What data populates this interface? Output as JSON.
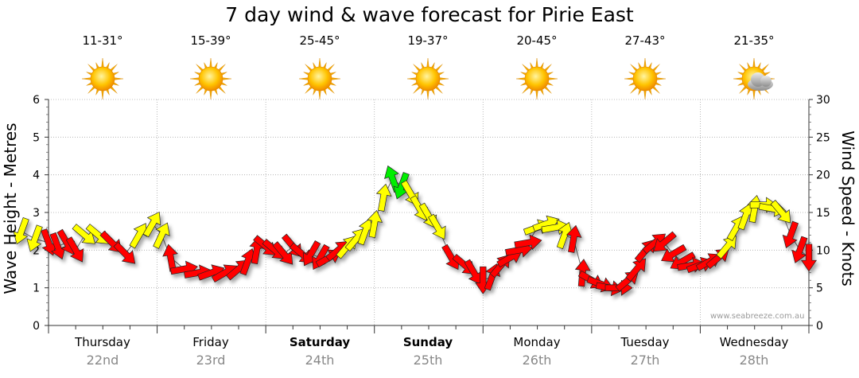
{
  "title": "7 day wind & wave forecast for Pirie East",
  "watermark": "www.seabreeze.com.au",
  "days": [
    {
      "name": "Thursday",
      "date": "22nd",
      "temp": "11-31°",
      "icon": "sun-icon",
      "bold": false
    },
    {
      "name": "Friday",
      "date": "23rd",
      "temp": "15-39°",
      "icon": "sun-icon",
      "bold": false
    },
    {
      "name": "Saturday",
      "date": "24th",
      "temp": "25-45°",
      "icon": "sun-icon",
      "bold": true
    },
    {
      "name": "Sunday",
      "date": "25th",
      "temp": "19-37°",
      "icon": "sun-icon",
      "bold": true
    },
    {
      "name": "Monday",
      "date": "26th",
      "temp": "20-45°",
      "icon": "sun-icon",
      "bold": false
    },
    {
      "name": "Tuesday",
      "date": "27th",
      "temp": "27-43°",
      "icon": "sun-icon",
      "bold": false
    },
    {
      "name": "Wednesday",
      "date": "28th",
      "temp": "21-35°",
      "icon": "sun-cloud-icon",
      "bold": false
    }
  ],
  "colors": {
    "strong": "#ff0000",
    "moderate": "#ffff00",
    "light": "#00ee00",
    "outline": "#222222",
    "grid": "#aaaaaa"
  },
  "chart_data": {
    "type": "line",
    "title": "7 day wind & wave forecast for Pirie East",
    "ylabel_left": "Wave Height - Metres",
    "ylabel_right": "Wind Speed - Knots",
    "ylim_left": [
      0,
      6
    ],
    "ylim_right": [
      0,
      30
    ],
    "yticks_left": [
      "0",
      "1",
      "2",
      "3",
      "4",
      "5",
      "6"
    ],
    "yticks_right": [
      "0",
      "5",
      "10",
      "15",
      "20",
      "25",
      "30"
    ],
    "x_unit": "hours from Thursday 00:00",
    "xlim": [
      -8,
      168
    ],
    "grid": true,
    "series": [
      {
        "kind": "wind_arrows",
        "units": "knots / degrees (arrow heading direction)",
        "points": [
          {
            "x": -6,
            "wave": 2.5,
            "dir": 200,
            "c": "y"
          },
          {
            "x": -3,
            "wave": 2.3,
            "dir": 200,
            "c": "y"
          },
          {
            "x": 0,
            "wave": 2.2,
            "dir": 160,
            "c": "r"
          },
          {
            "x": 2,
            "wave": 2.1,
            "dir": 160,
            "c": "r"
          },
          {
            "x": 4,
            "wave": 2.2,
            "dir": 150,
            "c": "r"
          },
          {
            "x": 6,
            "wave": 2.0,
            "dir": 150,
            "c": "r"
          },
          {
            "x": 8,
            "wave": 2.4,
            "dir": 130,
            "c": "y"
          },
          {
            "x": 11,
            "wave": 2.4,
            "dir": 130,
            "c": "y"
          },
          {
            "x": 14,
            "wave": 2.2,
            "dir": 135,
            "c": "r"
          },
          {
            "x": 17,
            "wave": 1.9,
            "dir": 135,
            "c": "r"
          },
          {
            "x": 20,
            "wave": 2.4,
            "dir": 30,
            "c": "y"
          },
          {
            "x": 23,
            "wave": 2.7,
            "dir": 30,
            "c": "y"
          },
          {
            "x": 25,
            "wave": 2.4,
            "dir": 25,
            "c": "y"
          },
          {
            "x": 27,
            "wave": 1.8,
            "dir": 350,
            "c": "r"
          },
          {
            "x": 30,
            "wave": 1.5,
            "dir": 80,
            "c": "r"
          },
          {
            "x": 33,
            "wave": 1.4,
            "dir": 80,
            "c": "r"
          },
          {
            "x": 36,
            "wave": 1.4,
            "dir": 70,
            "c": "r"
          },
          {
            "x": 39,
            "wave": 1.4,
            "dir": 60,
            "c": "r"
          },
          {
            "x": 42,
            "wave": 1.5,
            "dir": 50,
            "c": "r"
          },
          {
            "x": 44,
            "wave": 1.7,
            "dir": 20,
            "c": "r"
          },
          {
            "x": 46,
            "wave": 2.0,
            "dir": 10,
            "c": "r"
          },
          {
            "x": 48,
            "wave": 2.1,
            "dir": 130,
            "c": "r"
          },
          {
            "x": 50,
            "wave": 2.0,
            "dir": 130,
            "c": "r"
          },
          {
            "x": 52,
            "wave": 1.9,
            "dir": 140,
            "c": "r"
          },
          {
            "x": 54,
            "wave": 2.1,
            "dir": 140,
            "c": "r"
          },
          {
            "x": 56,
            "wave": 1.9,
            "dir": 130,
            "c": "r"
          },
          {
            "x": 58,
            "wave": 1.9,
            "dir": 210,
            "c": "r"
          },
          {
            "x": 60,
            "wave": 1.8,
            "dir": 210,
            "c": "r"
          },
          {
            "x": 62,
            "wave": 1.8,
            "dir": 60,
            "c": "r"
          },
          {
            "x": 64,
            "wave": 2.0,
            "dir": 50,
            "c": "r"
          },
          {
            "x": 66,
            "wave": 2.1,
            "dir": 40,
            "c": "y"
          },
          {
            "x": 68,
            "wave": 2.3,
            "dir": 40,
            "c": "y"
          },
          {
            "x": 70,
            "wave": 2.5,
            "dir": 20,
            "c": "y"
          },
          {
            "x": 72,
            "wave": 2.7,
            "dir": 10,
            "c": "y"
          },
          {
            "x": 74,
            "wave": 3.4,
            "dir": 10,
            "c": "y"
          },
          {
            "x": 76,
            "wave": 3.9,
            "dir": 340,
            "c": "g"
          },
          {
            "x": 78,
            "wave": 3.7,
            "dir": 200,
            "c": "g"
          },
          {
            "x": 80,
            "wave": 3.5,
            "dir": 150,
            "c": "y"
          },
          {
            "x": 82,
            "wave": 3.1,
            "dir": 150,
            "c": "y"
          },
          {
            "x": 84,
            "wave": 2.9,
            "dir": 150,
            "c": "y"
          },
          {
            "x": 86,
            "wave": 2.6,
            "dir": 150,
            "c": "y"
          },
          {
            "x": 89,
            "wave": 1.8,
            "dir": 150,
            "c": "r"
          },
          {
            "x": 92,
            "wave": 1.6,
            "dir": 130,
            "c": "r"
          },
          {
            "x": 94,
            "wave": 1.4,
            "dir": 150,
            "c": "r"
          },
          {
            "x": 96,
            "wave": 1.2,
            "dir": 180,
            "c": "r"
          },
          {
            "x": 98,
            "wave": 1.3,
            "dir": 20,
            "c": "r"
          },
          {
            "x": 100,
            "wave": 1.6,
            "dir": 40,
            "c": "r"
          },
          {
            "x": 102,
            "wave": 1.8,
            "dir": 60,
            "c": "r"
          },
          {
            "x": 104,
            "wave": 2.0,
            "dir": 80,
            "c": "r"
          },
          {
            "x": 106,
            "wave": 2.2,
            "dir": 80,
            "c": "r"
          },
          {
            "x": 108,
            "wave": 2.6,
            "dir": 70,
            "c": "y"
          },
          {
            "x": 110,
            "wave": 2.7,
            "dir": 70,
            "c": "y"
          },
          {
            "x": 112,
            "wave": 2.6,
            "dir": 80,
            "c": "y"
          },
          {
            "x": 114,
            "wave": 2.4,
            "dir": 20,
            "c": "y"
          },
          {
            "x": 116,
            "wave": 2.3,
            "dir": 10,
            "c": "r"
          },
          {
            "x": 118,
            "wave": 1.4,
            "dir": 5,
            "c": "r"
          },
          {
            "x": 120,
            "wave": 1.2,
            "dir": 120,
            "c": "r"
          },
          {
            "x": 122,
            "wave": 1.1,
            "dir": 110,
            "c": "r"
          },
          {
            "x": 124,
            "wave": 1.0,
            "dir": 100,
            "c": "r"
          },
          {
            "x": 126,
            "wave": 1.0,
            "dir": 90,
            "c": "r"
          },
          {
            "x": 128,
            "wave": 1.2,
            "dir": 50,
            "c": "r"
          },
          {
            "x": 130,
            "wave": 1.5,
            "dir": 40,
            "c": "r"
          },
          {
            "x": 132,
            "wave": 2.0,
            "dir": 40,
            "c": "r"
          },
          {
            "x": 134,
            "wave": 2.2,
            "dir": 50,
            "c": "r"
          },
          {
            "x": 136,
            "wave": 2.2,
            "dir": 230,
            "c": "r"
          },
          {
            "x": 138,
            "wave": 1.9,
            "dir": 240,
            "c": "r"
          },
          {
            "x": 140,
            "wave": 1.7,
            "dir": 240,
            "c": "r"
          },
          {
            "x": 142,
            "wave": 1.6,
            "dir": 80,
            "c": "r"
          },
          {
            "x": 144,
            "wave": 1.6,
            "dir": 70,
            "c": "r"
          },
          {
            "x": 146,
            "wave": 1.7,
            "dir": 60,
            "c": "r"
          },
          {
            "x": 148,
            "wave": 1.8,
            "dir": 50,
            "c": "r"
          },
          {
            "x": 150,
            "wave": 2.1,
            "dir": 40,
            "c": "y"
          },
          {
            "x": 152,
            "wave": 2.6,
            "dir": 30,
            "c": "y"
          },
          {
            "x": 154,
            "wave": 2.9,
            "dir": 20,
            "c": "y"
          },
          {
            "x": 156,
            "wave": 3.1,
            "dir": 10,
            "c": "y"
          },
          {
            "x": 158,
            "wave": 3.2,
            "dir": 90,
            "c": "y"
          },
          {
            "x": 160,
            "wave": 3.1,
            "dir": 100,
            "c": "y"
          },
          {
            "x": 162,
            "wave": 3.0,
            "dir": 140,
            "c": "y"
          },
          {
            "x": 164,
            "wave": 2.4,
            "dir": 200,
            "c": "r"
          },
          {
            "x": 166,
            "wave": 2.0,
            "dir": 200,
            "c": "r"
          },
          {
            "x": 168,
            "wave": 1.8,
            "dir": 180,
            "c": "r"
          }
        ]
      }
    ]
  }
}
